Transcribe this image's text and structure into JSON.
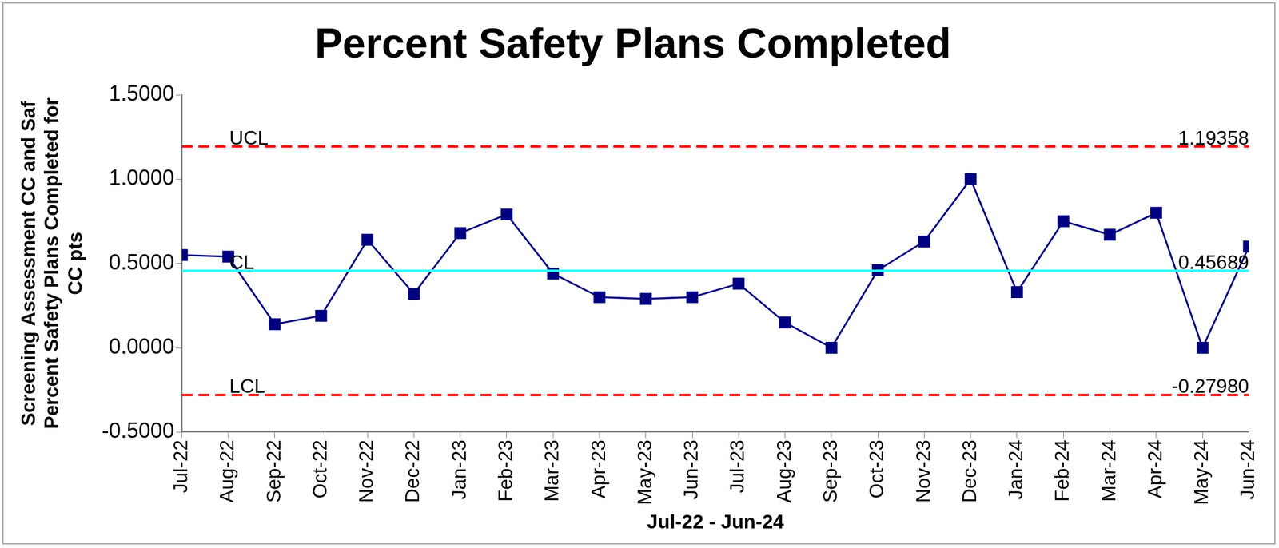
{
  "chart_data": {
    "type": "line",
    "title": "Percent Safety Plans Completed",
    "x_label": "Jul-22 - Jun-24",
    "y_label": [
      "Screening Assessment CC and Saf",
      "Percent Safety Plans Completed for",
      "CC pts"
    ],
    "categories": [
      "Jul-22",
      "Aug-22",
      "Sep-22",
      "Oct-22",
      "Nov-22",
      "Dec-22",
      "Jan-23",
      "Feb-23",
      "Mar-23",
      "Apr-23",
      "May-23",
      "Jun-23",
      "Jul-23",
      "Aug-23",
      "Sep-23",
      "Oct-23",
      "Nov-23",
      "Dec-23",
      "Jan-24",
      "Feb-24",
      "Mar-24",
      "Apr-24",
      "May-24",
      "Jun-24"
    ],
    "values": [
      0.55,
      0.54,
      0.14,
      0.19,
      0.64,
      0.32,
      0.68,
      0.79,
      0.44,
      0.3,
      0.29,
      0.3,
      0.38,
      0.15,
      0.0,
      0.46,
      0.63,
      1.0,
      0.33,
      0.75,
      0.67,
      0.8,
      0.0,
      0.6
    ],
    "color": "#000080",
    "marker": "square",
    "line_style": "solid",
    "control_limits": [
      {
        "name": "UCL",
        "value": 1.19358,
        "label": "1.19358",
        "color": "#ff0000",
        "line_style": "dashed"
      },
      {
        "name": "CL",
        "value": 0.45689,
        "label": "0.45689",
        "color": "#33ffff",
        "line_style": "solid"
      },
      {
        "name": "LCL",
        "value": -0.2798,
        "label": "-0.27980",
        "color": "#ff0000",
        "line_style": "dashed"
      }
    ],
    "ylim": [
      -0.5,
      1.5
    ],
    "yticks": [
      {
        "value": -0.5,
        "label": "-0.5000"
      },
      {
        "value": 0,
        "label": "0.0000"
      },
      {
        "value": 0.5,
        "label": "0.5000"
      },
      {
        "value": 1,
        "label": "1.0000"
      },
      {
        "value": 1.5,
        "label": "1.5000"
      }
    ],
    "grid": false
  }
}
